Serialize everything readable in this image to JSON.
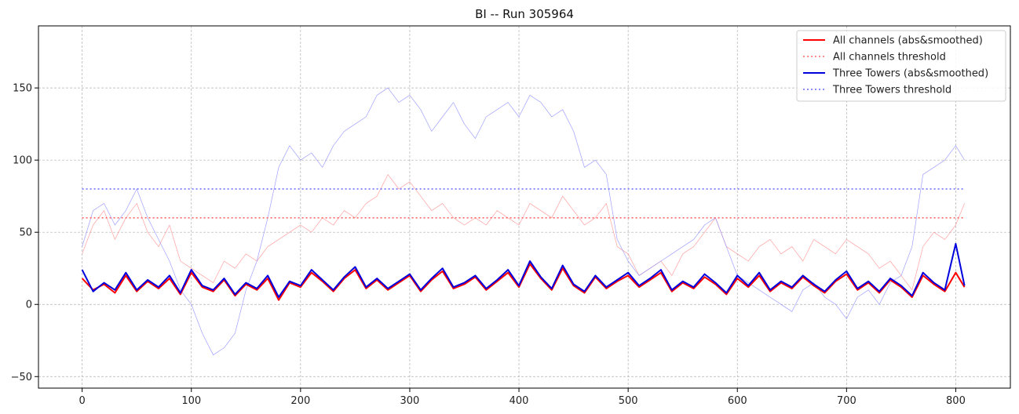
{
  "chart_data": {
    "type": "line",
    "title": "BI -- Run 305964",
    "xlabel": "",
    "ylabel": "",
    "xlim": [
      -40,
      850
    ],
    "ylim": [
      -58,
      193
    ],
    "xticks": [
      0,
      100,
      200,
      300,
      400,
      500,
      600,
      700,
      800
    ],
    "yticks": [
      -50,
      0,
      50,
      100,
      150
    ],
    "grid": true,
    "legend_position": "top-right",
    "legend": [
      {
        "label": "All channels (abs&smoothed)",
        "color": "#ff0000",
        "style": "solid"
      },
      {
        "label": "All channels threshold",
        "color": "#ff6666",
        "style": "dotted"
      },
      {
        "label": "Three Towers (abs&smoothed)",
        "color": "#0000dd",
        "style": "solid"
      },
      {
        "label": "Three Towers threshold",
        "color": "#6666ff",
        "style": "dotted"
      }
    ],
    "series": [
      {
        "name": "All channels (abs&smoothed)",
        "color": "#ff0000",
        "x": [
          0,
          10,
          20,
          30,
          40,
          50,
          60,
          70,
          80,
          90,
          100,
          110,
          120,
          130,
          140,
          150,
          160,
          170,
          180,
          190,
          200,
          210,
          220,
          230,
          240,
          250,
          260,
          270,
          280,
          290,
          300,
          310,
          320,
          330,
          340,
          350,
          360,
          370,
          380,
          390,
          400,
          410,
          420,
          430,
          440,
          450,
          460,
          470,
          480,
          490,
          500,
          510,
          520,
          530,
          540,
          550,
          560,
          570,
          580,
          590,
          600,
          610,
          620,
          630,
          640,
          650,
          660,
          670,
          680,
          690,
          700,
          710,
          720,
          730,
          740,
          750,
          760,
          770,
          780,
          790,
          800,
          808
        ],
        "y": [
          18,
          10,
          14,
          8,
          20,
          9,
          16,
          11,
          18,
          7,
          22,
          12,
          9,
          17,
          6,
          14,
          10,
          18,
          3,
          15,
          12,
          22,
          16,
          9,
          18,
          24,
          11,
          17,
          10,
          15,
          20,
          9,
          17,
          23,
          11,
          14,
          19,
          10,
          16,
          22,
          12,
          28,
          18,
          10,
          25,
          13,
          8,
          19,
          11,
          16,
          20,
          12,
          17,
          22,
          9,
          15,
          11,
          19,
          14,
          7,
          18,
          12,
          20,
          9,
          15,
          11,
          19,
          13,
          8,
          16,
          21,
          10,
          15,
          8,
          17,
          12,
          5,
          20,
          14,
          9,
          22,
          12
        ]
      },
      {
        "name": "All channels threshold",
        "color": "#ff6666",
        "x": [
          0,
          808
        ],
        "y": [
          60,
          60
        ]
      },
      {
        "name": "Three Towers (abs&smoothed)",
        "color": "#0000dd",
        "x": [
          0,
          10,
          20,
          30,
          40,
          50,
          60,
          70,
          80,
          90,
          100,
          110,
          120,
          130,
          140,
          150,
          160,
          170,
          180,
          190,
          200,
          210,
          220,
          230,
          240,
          250,
          260,
          270,
          280,
          290,
          300,
          310,
          320,
          330,
          340,
          350,
          360,
          370,
          380,
          390,
          400,
          410,
          420,
          430,
          440,
          450,
          460,
          470,
          480,
          490,
          500,
          510,
          520,
          530,
          540,
          550,
          560,
          570,
          580,
          590,
          600,
          610,
          620,
          630,
          640,
          650,
          660,
          670,
          680,
          690,
          700,
          710,
          720,
          730,
          740,
          750,
          760,
          770,
          780,
          790,
          800,
          808
        ],
        "y": [
          24,
          9,
          15,
          10,
          22,
          10,
          17,
          12,
          20,
          8,
          24,
          13,
          10,
          18,
          7,
          15,
          11,
          20,
          5,
          16,
          13,
          24,
          17,
          10,
          19,
          26,
          12,
          18,
          11,
          16,
          21,
          10,
          18,
          25,
          12,
          15,
          20,
          11,
          17,
          24,
          13,
          30,
          19,
          11,
          27,
          14,
          9,
          20,
          12,
          17,
          22,
          13,
          18,
          24,
          10,
          16,
          12,
          21,
          15,
          8,
          20,
          13,
          22,
          10,
          16,
          12,
          20,
          14,
          9,
          17,
          23,
          11,
          16,
          9,
          18,
          13,
          6,
          22,
          15,
          10,
          42,
          13
        ]
      },
      {
        "name": "Three Towers threshold",
        "color": "#6666ff",
        "x": [
          0,
          808
        ],
        "y": [
          80,
          80
        ]
      },
      {
        "name": "",
        "color": "#ff8888",
        "x": [
          0,
          10,
          20,
          30,
          40,
          50,
          60,
          70,
          80,
          90,
          100,
          110,
          120,
          130,
          140,
          150,
          160,
          170,
          180,
          190,
          200,
          210,
          220,
          230,
          240,
          250,
          260,
          270,
          280,
          290,
          300,
          310,
          320,
          330,
          340,
          350,
          360,
          370,
          380,
          390,
          400,
          410,
          420,
          430,
          440,
          450,
          460,
          470,
          480,
          490,
          500,
          510,
          520,
          530,
          540,
          550,
          560,
          570,
          580,
          590,
          600,
          610,
          620,
          630,
          640,
          650,
          660,
          670,
          680,
          690,
          700,
          710,
          720,
          730,
          740,
          750,
          760,
          770,
          780,
          790,
          800,
          808
        ],
        "y": [
          35,
          55,
          65,
          45,
          60,
          70,
          50,
          40,
          55,
          30,
          25,
          20,
          15,
          30,
          25,
          35,
          30,
          40,
          45,
          50,
          55,
          50,
          60,
          55,
          65,
          60,
          70,
          75,
          90,
          80,
          85,
          75,
          65,
          70,
          60,
          55,
          60,
          55,
          65,
          60,
          55,
          70,
          65,
          60,
          75,
          65,
          55,
          60,
          70,
          40,
          35,
          20,
          25,
          30,
          20,
          35,
          40,
          50,
          60,
          40,
          35,
          30,
          40,
          45,
          35,
          40,
          30,
          45,
          40,
          35,
          45,
          40,
          35,
          25,
          30,
          20,
          10,
          40,
          50,
          45,
          55,
          70
        ]
      },
      {
        "name": "",
        "color": "#8888ff",
        "x": [
          0,
          10,
          20,
          30,
          40,
          50,
          60,
          70,
          80,
          90,
          100,
          110,
          120,
          130,
          140,
          150,
          160,
          170,
          180,
          190,
          200,
          210,
          220,
          230,
          240,
          250,
          260,
          270,
          280,
          290,
          300,
          310,
          320,
          330,
          340,
          350,
          360,
          370,
          380,
          390,
          400,
          410,
          420,
          430,
          440,
          450,
          460,
          470,
          480,
          490,
          500,
          510,
          520,
          530,
          540,
          550,
          560,
          570,
          580,
          590,
          600,
          610,
          620,
          630,
          640,
          650,
          660,
          670,
          680,
          690,
          700,
          710,
          720,
          730,
          740,
          750,
          760,
          770,
          780,
          790,
          800,
          808
        ],
        "y": [
          40,
          65,
          70,
          55,
          65,
          80,
          60,
          45,
          30,
          10,
          0,
          -20,
          -35,
          -30,
          -20,
          10,
          30,
          60,
          95,
          110,
          100,
          105,
          95,
          110,
          120,
          125,
          130,
          145,
          150,
          140,
          145,
          135,
          120,
          130,
          140,
          125,
          115,
          130,
          135,
          140,
          130,
          145,
          140,
          130,
          135,
          120,
          95,
          100,
          90,
          45,
          30,
          20,
          25,
          30,
          35,
          40,
          45,
          55,
          60,
          40,
          20,
          15,
          10,
          5,
          0,
          -5,
          10,
          15,
          5,
          0,
          -10,
          5,
          10,
          0,
          15,
          20,
          40,
          90,
          95,
          100,
          110,
          100
        ]
      }
    ]
  }
}
